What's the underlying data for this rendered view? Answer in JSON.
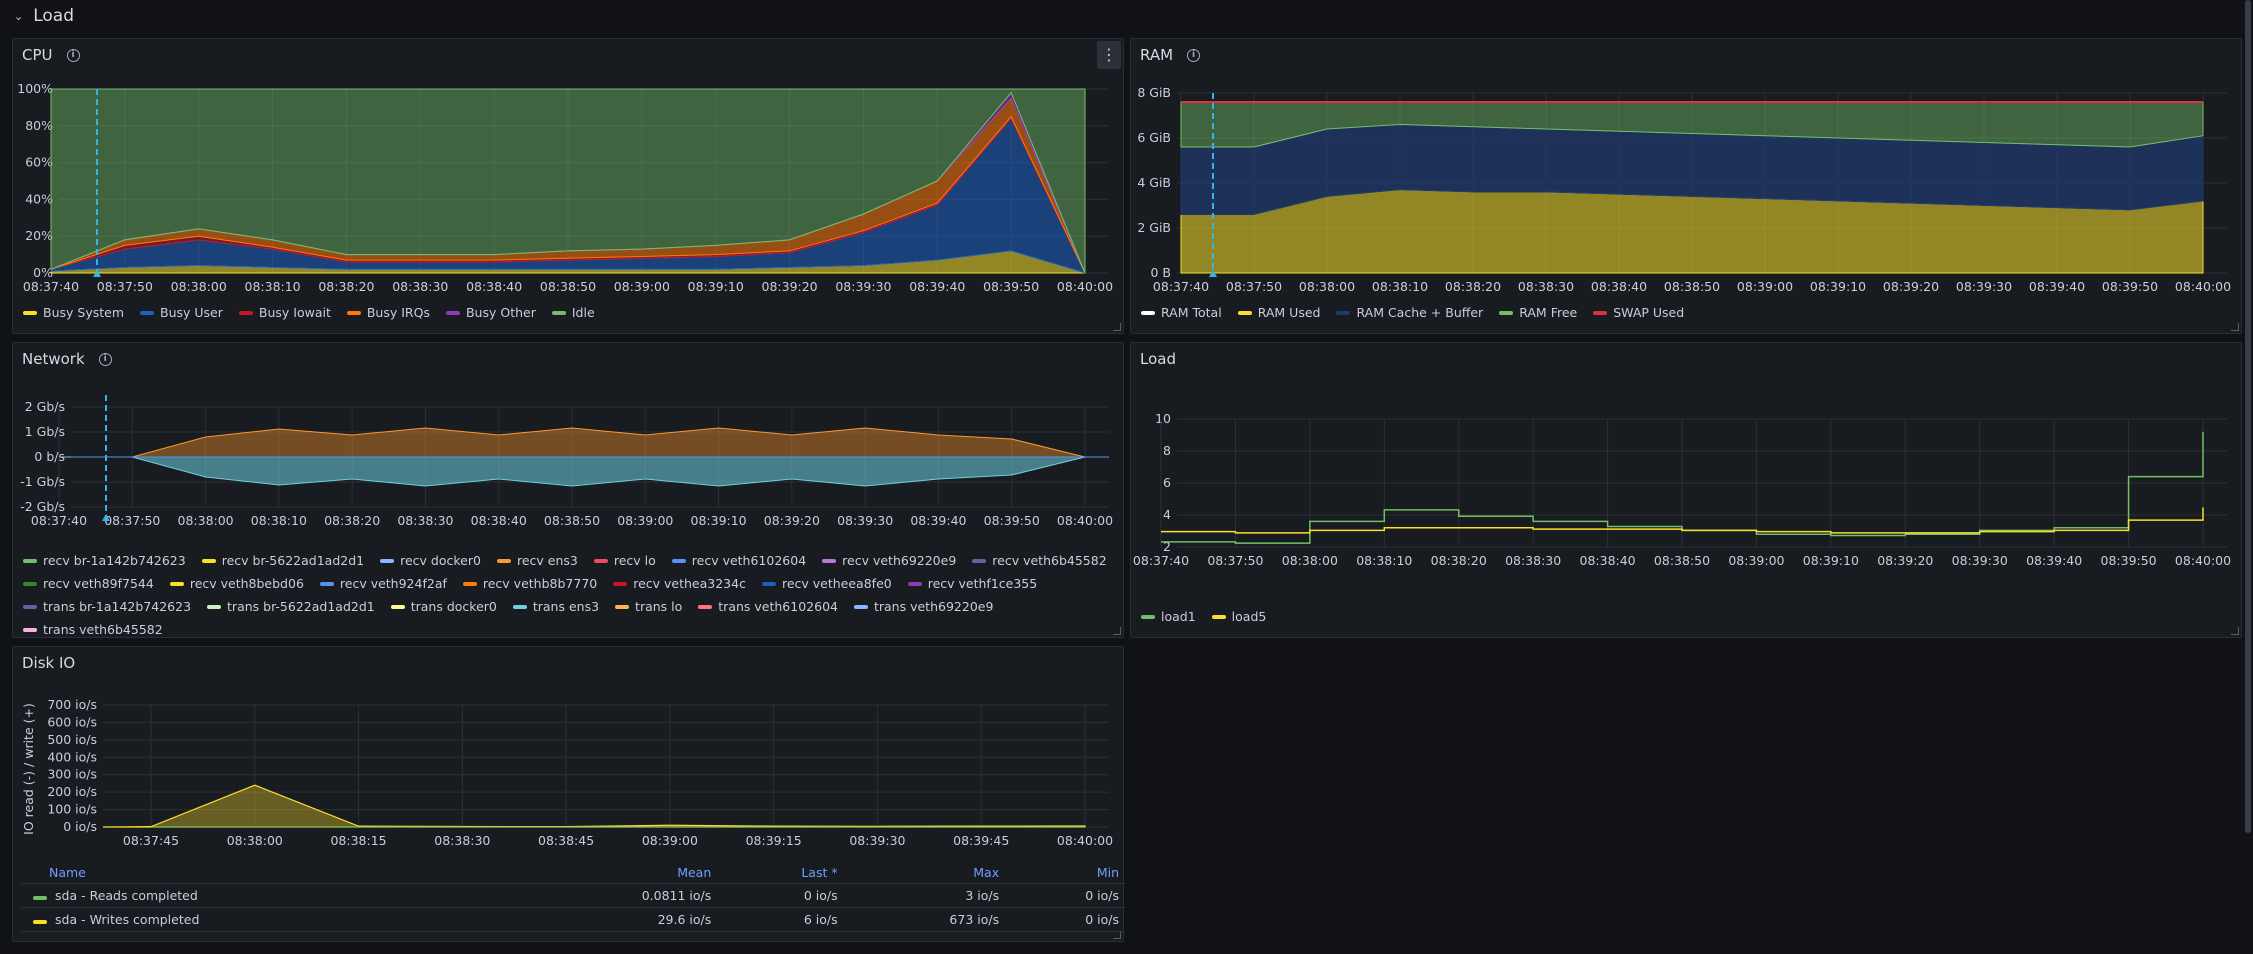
{
  "row": {
    "title": "Load"
  },
  "cpu": {
    "title": "CPU",
    "y_ticks": [
      "100%",
      "80%",
      "60%",
      "40%",
      "20%",
      "0%"
    ],
    "x_ticks": [
      "08:37:40",
      "08:37:50",
      "08:38:00",
      "08:38:10",
      "08:38:20",
      "08:38:30",
      "08:38:40",
      "08:38:50",
      "08:39:00",
      "08:39:10",
      "08:39:20",
      "08:39:30",
      "08:39:40",
      "08:39:50",
      "08:40:00"
    ],
    "legend": [
      {
        "label": "Busy System",
        "color": "#fade2a"
      },
      {
        "label": "Busy User",
        "color": "#1f60c4"
      },
      {
        "label": "Busy Iowait",
        "color": "#c4162a"
      },
      {
        "label": "Busy IRQs",
        "color": "#ff780a"
      },
      {
        "label": "Busy Other",
        "color": "#8f3bb8"
      },
      {
        "label": "Idle",
        "color": "#73bf69"
      }
    ]
  },
  "ram": {
    "title": "RAM",
    "y_ticks": [
      "8 GiB",
      "6 GiB",
      "4 GiB",
      "2 GiB",
      "0 B"
    ],
    "x_ticks": [
      "08:37:40",
      "08:37:50",
      "08:38:00",
      "08:38:10",
      "08:38:20",
      "08:38:30",
      "08:38:40",
      "08:38:50",
      "08:39:00",
      "08:39:10",
      "08:39:20",
      "08:39:30",
      "08:39:40",
      "08:39:50",
      "08:40:00"
    ],
    "legend": [
      {
        "label": "RAM Total",
        "color": "#ffffff"
      },
      {
        "label": "RAM Used",
        "color": "#fade2a"
      },
      {
        "label": "RAM Cache + Buffer",
        "color": "#1f3a6e"
      },
      {
        "label": "RAM Free",
        "color": "#73bf69"
      },
      {
        "label": "SWAP Used",
        "color": "#e02f44"
      }
    ]
  },
  "network": {
    "title": "Network",
    "y_ticks": [
      "2 Gb/s",
      "1 Gb/s",
      "0 b/s",
      "-1 Gb/s",
      "-2 Gb/s"
    ],
    "x_ticks": [
      "08:37:40",
      "08:37:50",
      "08:38:00",
      "08:38:10",
      "08:38:20",
      "08:38:30",
      "08:38:40",
      "08:38:50",
      "08:39:00",
      "08:39:10",
      "08:39:20",
      "08:39:30",
      "08:39:40",
      "08:39:50",
      "08:40:00"
    ],
    "legend": [
      {
        "label": "recv br-1a142b742623",
        "color": "#73bf69"
      },
      {
        "label": "recv br-5622ad1ad2d1",
        "color": "#fade2a"
      },
      {
        "label": "recv docker0",
        "color": "#8ab8ff"
      },
      {
        "label": "recv ens3",
        "color": "#ff9830"
      },
      {
        "label": "recv lo",
        "color": "#f2495c"
      },
      {
        "label": "recv veth6102604",
        "color": "#5794f2"
      },
      {
        "label": "recv veth69220e9",
        "color": "#b877d9"
      },
      {
        "label": "recv veth6b45582",
        "color": "#705da0"
      },
      {
        "label": "recv veth89f7544",
        "color": "#37872d"
      },
      {
        "label": "recv veth8bebd06",
        "color": "#fade2a"
      },
      {
        "label": "recv veth924f2af",
        "color": "#5794f2"
      },
      {
        "label": "recv vethb8b7770",
        "color": "#ff780a"
      },
      {
        "label": "recv vethea3234c",
        "color": "#c4162a"
      },
      {
        "label": "recv vetheea8fe0",
        "color": "#1f60c4"
      },
      {
        "label": "recv vethf1ce355",
        "color": "#8f3bb8"
      },
      {
        "label": "trans br-1a142b742623",
        "color": "#705da0"
      },
      {
        "label": "trans br-5622ad1ad2d1",
        "color": "#c8f2c2"
      },
      {
        "label": "trans docker0",
        "color": "#fff899"
      },
      {
        "label": "trans ens3",
        "color": "#6ed0e0"
      },
      {
        "label": "trans lo",
        "color": "#ffb357"
      },
      {
        "label": "trans veth6102604",
        "color": "#ff7383"
      },
      {
        "label": "trans veth69220e9",
        "color": "#8ab8ff"
      },
      {
        "label": "trans veth6b45582",
        "color": "#f8b2e6"
      }
    ]
  },
  "load": {
    "title": "Load",
    "y_ticks": [
      "10",
      "8",
      "6",
      "4",
      "2"
    ],
    "x_ticks": [
      "08:37:40",
      "08:37:50",
      "08:38:00",
      "08:38:10",
      "08:38:20",
      "08:38:30",
      "08:38:40",
      "08:38:50",
      "08:39:00",
      "08:39:10",
      "08:39:20",
      "08:39:30",
      "08:39:40",
      "08:39:50",
      "08:40:00"
    ],
    "legend": [
      {
        "label": "load1",
        "color": "#73bf69"
      },
      {
        "label": "load5",
        "color": "#fade2a"
      }
    ]
  },
  "disk": {
    "title": "Disk IO",
    "y_axis_label": "IO read (-) / write (+)",
    "y_ticks": [
      "700 io/s",
      "600 io/s",
      "500 io/s",
      "400 io/s",
      "300 io/s",
      "200 io/s",
      "100 io/s",
      "0 io/s"
    ],
    "x_ticks": [
      "08:37:45",
      "08:38:00",
      "08:38:15",
      "08:38:30",
      "08:38:45",
      "08:39:00",
      "08:39:15",
      "08:39:30",
      "08:39:45",
      "08:40:00"
    ],
    "table": {
      "headers": [
        "Name",
        "Mean",
        "Last *",
        "Max",
        "Min"
      ],
      "rows": [
        {
          "name": "sda - Reads completed",
          "color": "#73bf69",
          "mean": "0.0811 io/s",
          "last": "0 io/s",
          "max": "3 io/s",
          "min": "0 io/s"
        },
        {
          "name": "sda - Writes completed",
          "color": "#fade2a",
          "mean": "29.6 io/s",
          "last": "6 io/s",
          "max": "673 io/s",
          "min": "0 io/s"
        }
      ]
    }
  },
  "chart_data": [
    {
      "type": "area",
      "title": "CPU",
      "x": [
        "08:37:40",
        "08:37:50",
        "08:38:00",
        "08:38:10",
        "08:38:20",
        "08:38:30",
        "08:38:40",
        "08:38:50",
        "08:39:00",
        "08:39:10",
        "08:39:20",
        "08:39:30",
        "08:39:40",
        "08:39:50",
        "08:40:00"
      ],
      "ylim": [
        0,
        100
      ],
      "series": [
        {
          "name": "Busy System",
          "values": [
            1,
            3,
            4,
            3,
            2,
            2,
            2,
            2,
            2,
            2,
            3,
            4,
            7,
            12,
            0
          ]
        },
        {
          "name": "Busy User",
          "values": [
            1,
            10,
            14,
            10,
            4,
            4,
            4,
            5,
            6,
            7,
            8,
            18,
            30,
            72,
            0
          ]
        },
        {
          "name": "Busy Iowait",
          "values": [
            0,
            2,
            2,
            1,
            1,
            1,
            1,
            1,
            1,
            1,
            1,
            1,
            1,
            1,
            0
          ]
        },
        {
          "name": "Busy IRQs",
          "values": [
            0,
            3,
            4,
            4,
            3,
            3,
            3,
            4,
            4,
            5,
            6,
            9,
            12,
            10,
            0
          ]
        },
        {
          "name": "Busy Other",
          "values": [
            0,
            0,
            0,
            0,
            0,
            0,
            0,
            0,
            0,
            0,
            0,
            0,
            0,
            3,
            0
          ]
        },
        {
          "name": "Idle",
          "values": [
            98,
            82,
            76,
            82,
            90,
            90,
            90,
            88,
            87,
            85,
            82,
            68,
            50,
            2,
            100
          ]
        }
      ]
    },
    {
      "type": "area",
      "title": "RAM",
      "x": [
        "08:37:40",
        "08:37:50",
        "08:38:00",
        "08:38:10",
        "08:38:20",
        "08:38:30",
        "08:38:40",
        "08:38:50",
        "08:39:00",
        "08:39:10",
        "08:39:20",
        "08:39:30",
        "08:39:40",
        "08:39:50",
        "08:40:00"
      ],
      "ylim": [
        0,
        8.5
      ],
      "unit": "GiB",
      "series": [
        {
          "name": "RAM Total",
          "values": [
            7.6,
            7.6,
            7.6,
            7.6,
            7.6,
            7.6,
            7.6,
            7.6,
            7.6,
            7.6,
            7.6,
            7.6,
            7.6,
            7.6,
            7.6
          ]
        },
        {
          "name": "RAM Used",
          "values": [
            2.6,
            2.6,
            3.4,
            3.7,
            3.6,
            3.6,
            3.5,
            3.4,
            3.3,
            3.2,
            3.1,
            3.0,
            2.9,
            2.8,
            3.2
          ]
        },
        {
          "name": "RAM Cache + Buffer",
          "values": [
            3.0,
            3.0,
            3.0,
            2.9,
            2.9,
            2.8,
            2.8,
            2.8,
            2.8,
            2.8,
            2.8,
            2.8,
            2.8,
            2.8,
            2.9
          ]
        },
        {
          "name": "RAM Free",
          "values": [
            2.0,
            2.0,
            1.2,
            1.0,
            1.1,
            1.2,
            1.3,
            1.4,
            1.5,
            1.6,
            1.7,
            1.8,
            1.9,
            2.0,
            1.5
          ]
        },
        {
          "name": "SWAP Used",
          "values": [
            0,
            0,
            0,
            0,
            0,
            0,
            0,
            0,
            0,
            0,
            0,
            0,
            0,
            0,
            0
          ]
        }
      ]
    },
    {
      "type": "area",
      "title": "Network",
      "x": [
        "08:37:40",
        "08:37:50",
        "08:38:00",
        "08:38:10",
        "08:38:20",
        "08:38:30",
        "08:38:40",
        "08:38:50",
        "08:39:00",
        "08:39:10",
        "08:39:20",
        "08:39:30",
        "08:39:40",
        "08:39:50",
        "08:40:00"
      ],
      "ylim": [
        -2.5,
        2.5
      ],
      "unit": "Gb/s",
      "series": [
        {
          "name": "recv (total)",
          "values": [
            0,
            0,
            1.0,
            1.05,
            1.1,
            1.1,
            1.1,
            1.1,
            1.1,
            1.1,
            1.1,
            1.1,
            1.1,
            0.9,
            0
          ]
        },
        {
          "name": "trans (total)",
          "values": [
            0,
            0,
            -1.0,
            -1.05,
            -1.1,
            -1.1,
            -1.1,
            -1.1,
            -1.1,
            -1.1,
            -1.1,
            -1.1,
            -1.1,
            -0.9,
            0
          ]
        }
      ]
    },
    {
      "type": "line",
      "title": "Load",
      "x": [
        "08:37:40",
        "08:37:50",
        "08:38:00",
        "08:38:10",
        "08:38:20",
        "08:38:30",
        "08:38:40",
        "08:38:50",
        "08:39:00",
        "08:39:10",
        "08:39:20",
        "08:39:30",
        "08:39:40",
        "08:39:50",
        "08:40:00"
      ],
      "ylim": [
        0,
        12
      ],
      "series": [
        {
          "name": "load1",
          "values": [
            1.4,
            1.3,
            3.0,
            3.9,
            3.4,
            3.0,
            2.6,
            2.3,
            2.0,
            1.9,
            2.0,
            2.3,
            2.5,
            6.5,
            10.0
          ]
        },
        {
          "name": "load5",
          "values": [
            2.2,
            2.1,
            2.3,
            2.5,
            2.5,
            2.4,
            2.4,
            2.3,
            2.2,
            2.1,
            2.1,
            2.2,
            2.3,
            3.1,
            4.1
          ]
        }
      ]
    },
    {
      "type": "area",
      "title": "Disk IO",
      "x": [
        "08:37:45",
        "08:38:00",
        "08:38:15",
        "08:38:30",
        "08:38:45",
        "08:39:00",
        "08:39:15",
        "08:39:30",
        "08:39:45",
        "08:40:00"
      ],
      "ylim": [
        0,
        750
      ],
      "ylabel": "IO read (-) / write (+)",
      "series": [
        {
          "name": "sda - Reads completed",
          "values": [
            0,
            0,
            0,
            0,
            0,
            0,
            0,
            0,
            0,
            0
          ]
        },
        {
          "name": "sda - Writes completed",
          "values": [
            2,
            240,
            5,
            3,
            2,
            10,
            5,
            4,
            5,
            6
          ]
        }
      ]
    }
  ]
}
